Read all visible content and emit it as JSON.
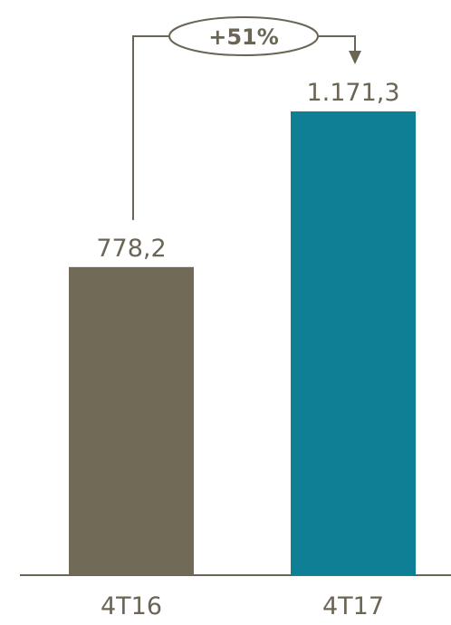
{
  "chart_data": {
    "type": "bar",
    "categories": [
      "4T16",
      "4T17"
    ],
    "values": [
      778.2,
      1171.3
    ],
    "value_labels": [
      "778,2",
      "1.171,3"
    ],
    "colors": [
      "#716a57",
      "#0e7f95"
    ],
    "change_label": "+51%",
    "title": "",
    "xlabel": "",
    "ylabel": "",
    "ylim": [
      0,
      1300
    ],
    "grid": false,
    "legend": "none"
  },
  "accent_color": "#6b6555"
}
